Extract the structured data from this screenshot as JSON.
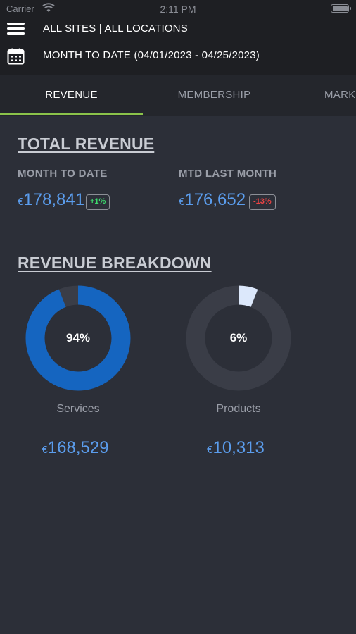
{
  "status_bar": {
    "carrier": "Carrier",
    "time": "2:11 PM"
  },
  "header": {
    "site_filter": "ALL SITES | ALL LOCATIONS",
    "date_range": "MONTH TO DATE (04/01/2023 - 04/25/2023)"
  },
  "tabs": [
    {
      "label": "REVENUE",
      "active": true
    },
    {
      "label": "MEMBERSHIP",
      "active": false
    },
    {
      "label": "MARK",
      "active": false
    }
  ],
  "total_revenue": {
    "title": "TOTAL REVENUE",
    "month_to_date": {
      "label": "MONTH TO DATE",
      "currency": "€",
      "value": "178,841",
      "change": "+1%"
    },
    "last_month": {
      "label": "MTD LAST MONTH",
      "currency": "€",
      "value": "176,652",
      "change": "-13%"
    }
  },
  "breakdown": {
    "title": "REVENUE BREAKDOWN",
    "items": [
      {
        "label": "Services",
        "percent_text": "94%",
        "percent": 94,
        "currency": "€",
        "amount": "168,529",
        "color": "#1565c0",
        "track": "#3a3d47"
      },
      {
        "label": "Products",
        "percent_text": "6%",
        "percent": 6,
        "currency": "€",
        "amount": "10,313",
        "color": "#dce8fb",
        "track": "#3a3d47"
      }
    ]
  },
  "colors": {
    "accent": "#5b9ded",
    "tab_underline": "#8bc34a",
    "positive": "#3ddc6e",
    "negative": "#ef4444"
  }
}
